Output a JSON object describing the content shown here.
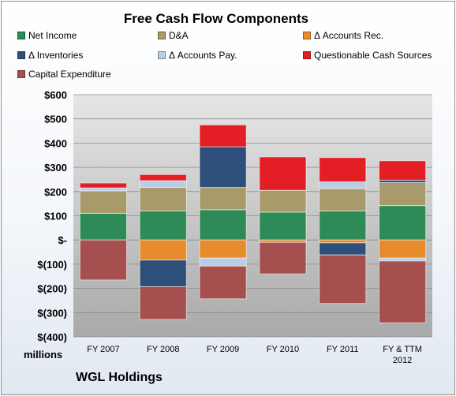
{
  "chart_data": {
    "type": "bar",
    "stacked": true,
    "title": "Free Cash Flow Components",
    "subtitle": "WGL Holdings",
    "ylabel": "millions",
    "ylim": [
      -400,
      600
    ],
    "yticks": [
      600,
      500,
      400,
      300,
      200,
      100,
      0,
      -100,
      -200,
      -300,
      -400
    ],
    "ytick_labels": [
      "$600",
      "$500",
      "$400",
      "$300",
      "$200",
      "$100",
      "$-",
      "$(100)",
      "$(200)",
      "$(300)",
      "$(400)"
    ],
    "categories": [
      "FY 2007",
      "FY 2008",
      "FY 2009",
      "FY 2010",
      "FY 2011",
      "FY & TTM\n2012"
    ],
    "grid": true,
    "legend_position": "top",
    "series": [
      {
        "name": "Net Income",
        "color": "#2e8b57",
        "values": [
          110,
          120,
          125,
          115,
          120,
          142
        ]
      },
      {
        "name": "D&A",
        "color": "#a89a6a",
        "values": [
          93,
          97,
          92,
          90,
          92,
          95
        ]
      },
      {
        "name": "Δ Accounts Rec.",
        "color": "#e88b2a",
        "values": [
          0,
          -83,
          -75,
          -10,
          -12,
          -75
        ]
      },
      {
        "name": "Δ Inventories",
        "color": "#2e4f7a",
        "values": [
          0,
          -110,
          168,
          0,
          -50,
          10
        ]
      },
      {
        "name": "Δ Accounts Pay.",
        "color": "#b9cde5",
        "values": [
          12,
          28,
          -33,
          0,
          28,
          -12
        ]
      },
      {
        "name": "Questionable Cash Sources",
        "color": "#e31e24",
        "values": [
          20,
          25,
          90,
          138,
          100,
          80
        ]
      },
      {
        "name": "Capital Expenditure",
        "color": "#a5504e",
        "values": [
          -165,
          -135,
          -135,
          -130,
          -200,
          -255
        ]
      }
    ]
  }
}
